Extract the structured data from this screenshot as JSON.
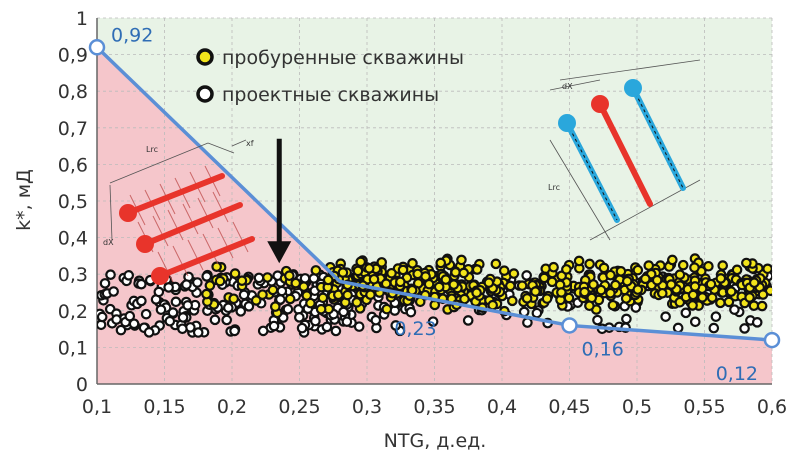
{
  "chart_data": {
    "type": "scatter",
    "xlabel": "NTG, д.ед.",
    "ylabel": "k*, мД",
    "xlim": [
      0.1,
      0.6
    ],
    "ylim": [
      0,
      1
    ],
    "x_ticks": [
      "0,1",
      "0,15",
      "0,2",
      "0,25",
      "0,3",
      "0,35",
      "0,4",
      "0,45",
      "0,5",
      "0,55",
      "0,6"
    ],
    "y_ticks": [
      "0",
      "0,1",
      "0,2",
      "0,3",
      "0,4",
      "0,5",
      "0,6",
      "0,7",
      "0,8",
      "0,9",
      "1"
    ],
    "grid": "dashed",
    "legend_position": "top-center",
    "boundary": {
      "points": [
        {
          "x": 0.1,
          "y": 0.92,
          "label": "0,92"
        },
        {
          "x": 0.28,
          "y": 0.28,
          "label": ""
        },
        {
          "x": 0.45,
          "y": 0.16,
          "label": "0,16"
        },
        {
          "x": 0.6,
          "y": 0.12,
          "label": "0,12"
        }
      ],
      "extra_label": {
        "x": 0.33,
        "y": 0.15,
        "text": "0,23"
      },
      "color": "#5b8fd6"
    },
    "regions": {
      "below_color": "#f5c6cb",
      "above_color": "#e8f3e6"
    },
    "series": [
      {
        "name": "пробуренные скважины",
        "color": "#f2e41b",
        "count": 560,
        "x_range": [
          0.25,
          0.6
        ],
        "y_range": [
          0.2,
          0.36
        ],
        "sample_points": [
          [
            0.3,
            0.28
          ],
          [
            0.35,
            0.31
          ],
          [
            0.4,
            0.27
          ],
          [
            0.45,
            0.25
          ],
          [
            0.5,
            0.29
          ],
          [
            0.55,
            0.26
          ],
          [
            0.58,
            0.3
          ],
          [
            0.33,
            0.24
          ],
          [
            0.42,
            0.33
          ],
          [
            0.47,
            0.22
          ]
        ]
      },
      {
        "name": "проектные скважины",
        "color": "#ffffff",
        "count": 240,
        "x_range": [
          0.1,
          0.6
        ],
        "y_range": [
          0.14,
          0.3
        ],
        "sample_points": [
          [
            0.1,
            0.27
          ],
          [
            0.12,
            0.16
          ],
          [
            0.15,
            0.2
          ],
          [
            0.18,
            0.24
          ],
          [
            0.2,
            0.17
          ],
          [
            0.22,
            0.27
          ],
          [
            0.25,
            0.19
          ],
          [
            0.28,
            0.16
          ],
          [
            0.3,
            0.21
          ],
          [
            0.45,
            0.16
          ]
        ]
      }
    ],
    "arrow": {
      "x": 0.235,
      "y_from": 0.67,
      "y_to": 0.33
    },
    "inset_left": {
      "labels": [
        "Lrc",
        "xf",
        "dX"
      ]
    },
    "inset_right": {
      "labels": [
        "dX",
        "Lrc"
      ]
    }
  },
  "colors": {
    "axis": "#666666",
    "grid": "#bbbbbb",
    "red_well": "#e8342b",
    "blue_well": "#2aa7dc",
    "arrow": "#111111"
  }
}
